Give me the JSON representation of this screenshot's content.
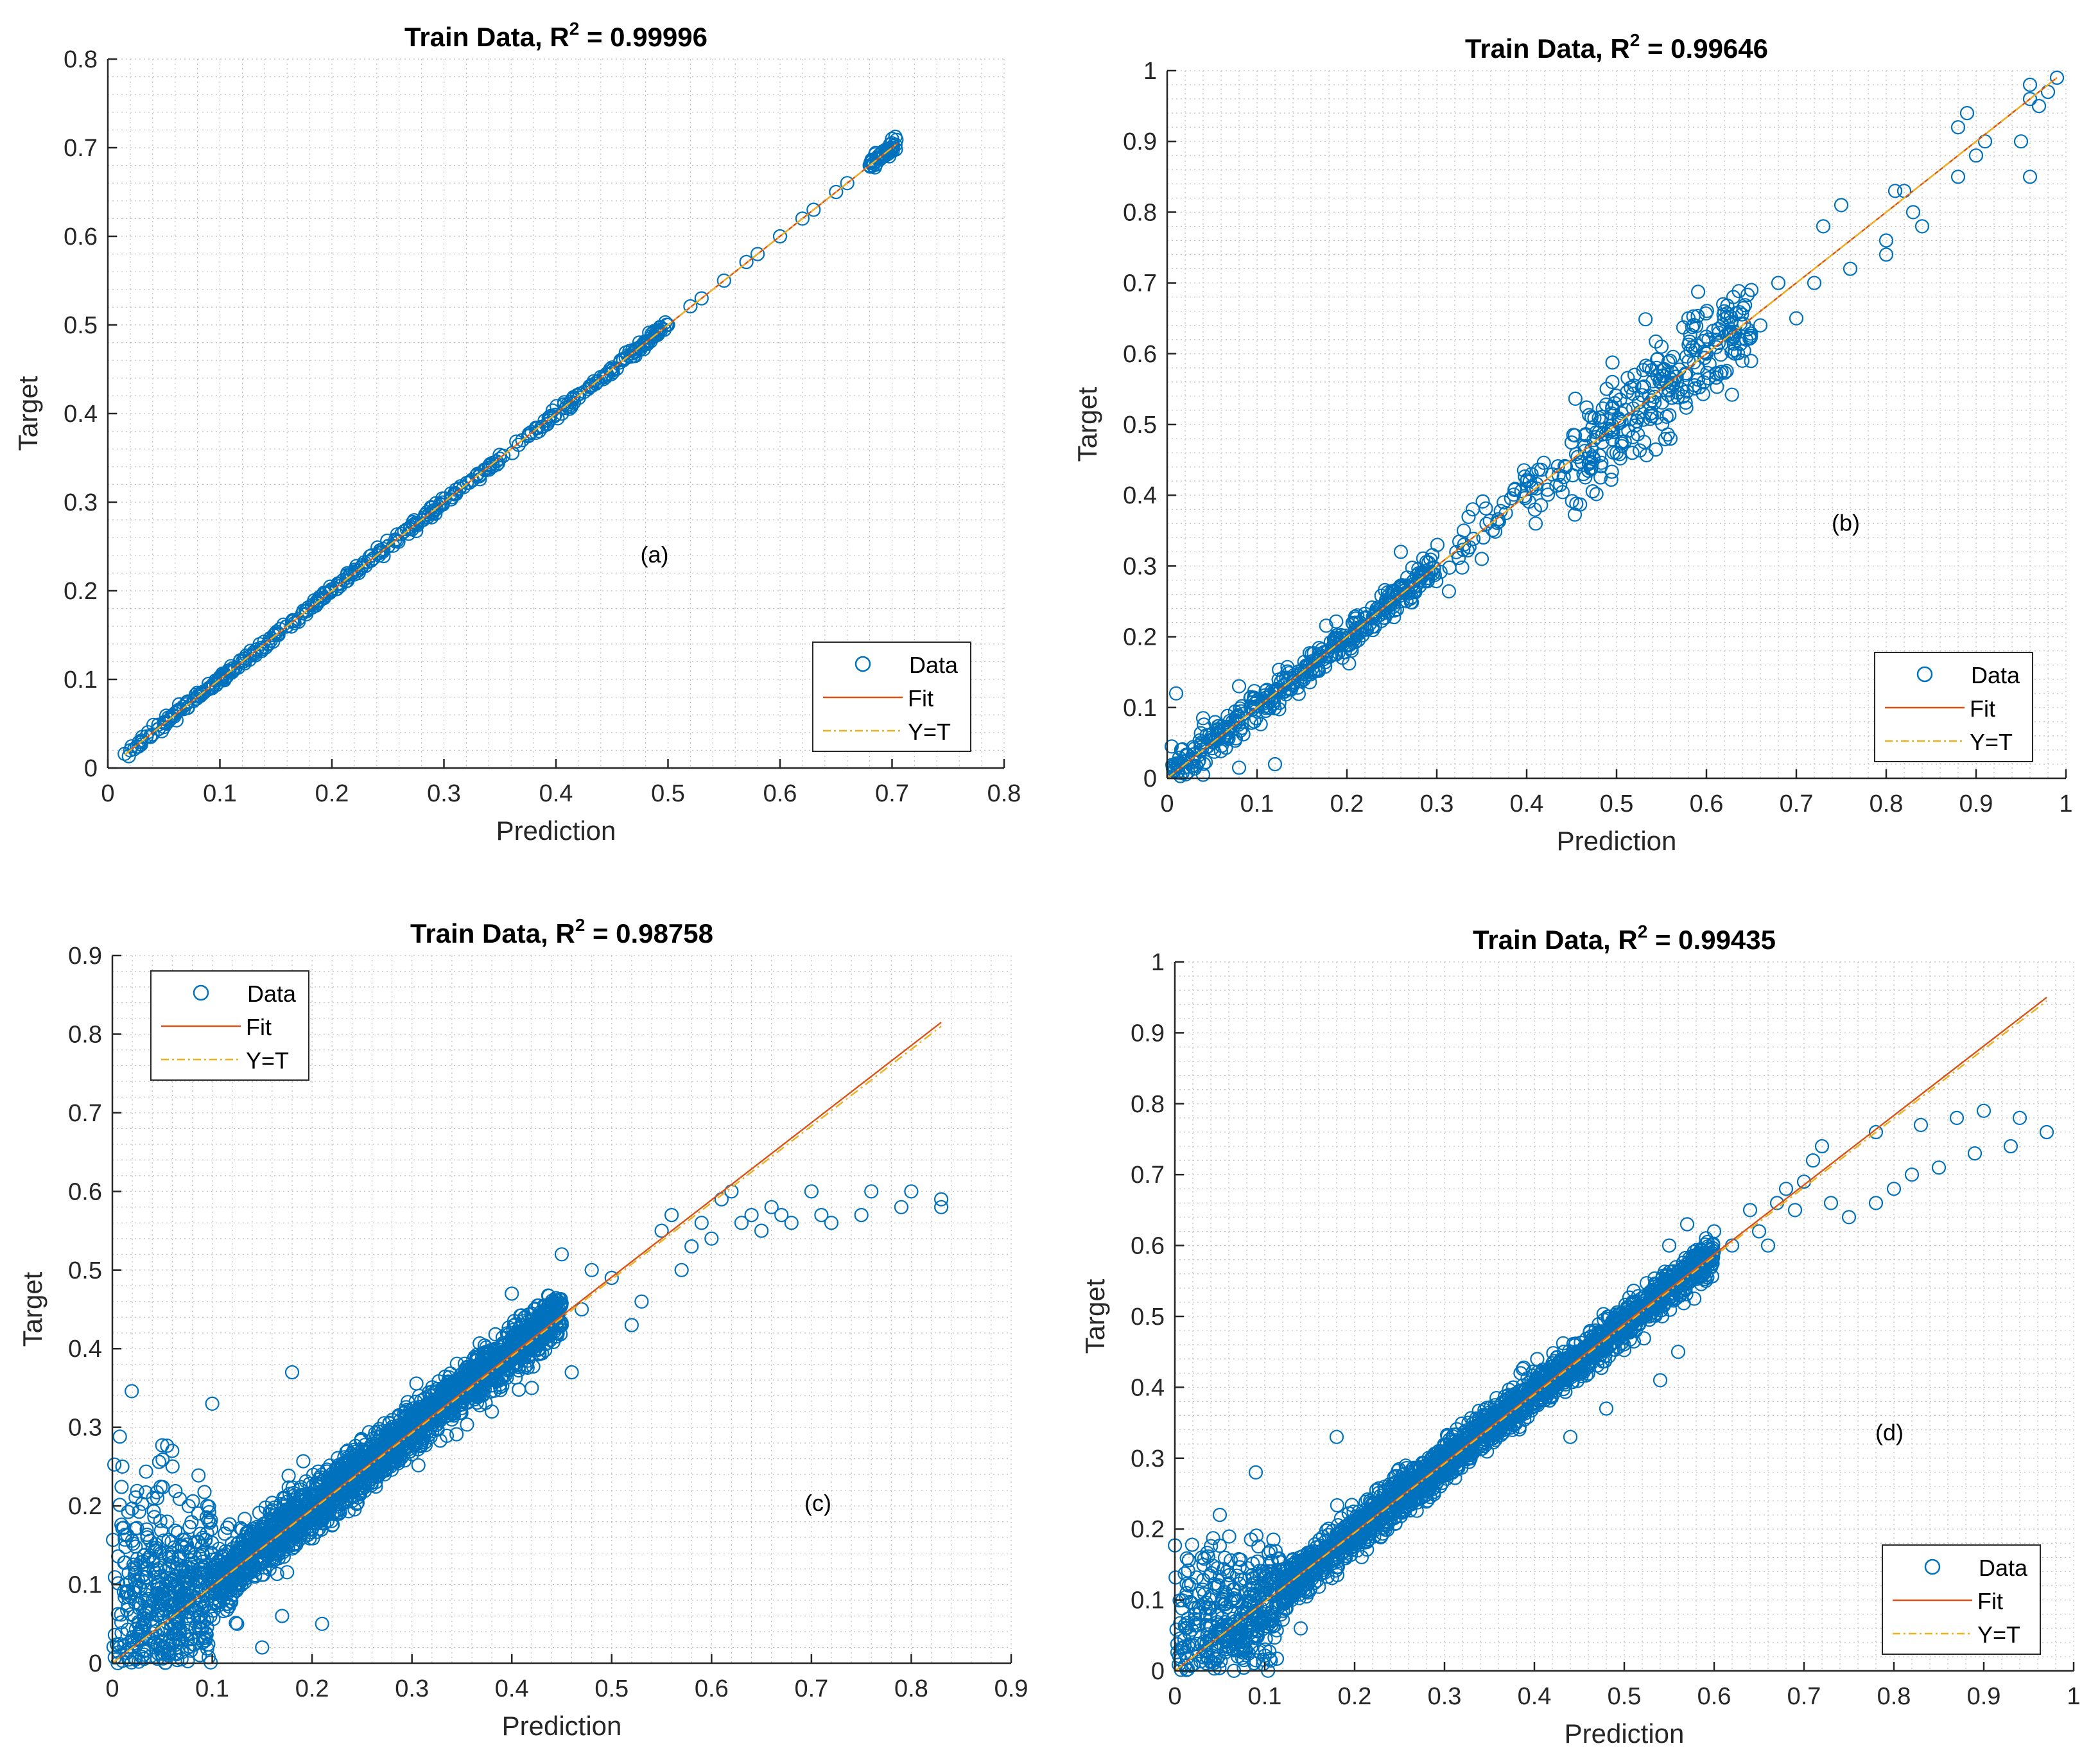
{
  "chart_data": [
    {
      "type": "scatter",
      "title_prefix": "Train Data, R",
      "title_sup": "2",
      "title_suffix": " = 0.99996",
      "xlabel": "Prediction",
      "ylabel": "Target",
      "annotation": "(a)",
      "annotation_pos": [
        0.61,
        0.29
      ],
      "xlim": [
        0,
        0.8
      ],
      "ylim": [
        0,
        0.8
      ],
      "xticks": [
        0,
        0.1,
        0.2,
        0.3,
        0.4,
        0.5,
        0.6,
        0.7,
        0.8
      ],
      "yticks": [
        0,
        0.1,
        0.2,
        0.3,
        0.4,
        0.5,
        0.6,
        0.7,
        0.8
      ],
      "xtick_labels": [
        "0",
        "0.1",
        "0.2",
        "0.3",
        "0.4",
        "0.5",
        "0.6",
        "0.7",
        "0.8"
      ],
      "ytick_labels": [
        "0",
        "0.1",
        "0.2",
        "0.3",
        "0.4",
        "0.5",
        "0.6",
        "0.7",
        "0.8"
      ],
      "fit": {
        "x": [
          0.015,
          0.705
        ],
        "y": [
          0.015,
          0.705
        ]
      },
      "identity": {
        "x": [
          0.015,
          0.705
        ],
        "y": [
          0.015,
          0.705
        ]
      },
      "points": [
        [
          0.015,
          0.016
        ],
        [
          0.02,
          0.02
        ],
        [
          0.03,
          0.031
        ],
        [
          0.04,
          0.038
        ],
        [
          0.05,
          0.051
        ],
        [
          0.06,
          0.062
        ],
        [
          0.07,
          0.072
        ],
        [
          0.08,
          0.085
        ],
        [
          0.09,
          0.095
        ],
        [
          0.1,
          0.1
        ],
        [
          0.11,
          0.115
        ],
        [
          0.12,
          0.12
        ],
        [
          0.13,
          0.13
        ],
        [
          0.15,
          0.152
        ],
        [
          0.17,
          0.168
        ],
        [
          0.19,
          0.19
        ],
        [
          0.21,
          0.212
        ],
        [
          0.23,
          0.228
        ],
        [
          0.25,
          0.25
        ],
        [
          0.27,
          0.272
        ],
        [
          0.29,
          0.289
        ],
        [
          0.31,
          0.31
        ],
        [
          0.33,
          0.332
        ],
        [
          0.35,
          0.349
        ],
        [
          0.37,
          0.37
        ],
        [
          0.39,
          0.392
        ],
        [
          0.41,
          0.41
        ],
        [
          0.43,
          0.43
        ],
        [
          0.45,
          0.452
        ],
        [
          0.47,
          0.47
        ],
        [
          0.49,
          0.49
        ],
        [
          0.5,
          0.5
        ],
        [
          0.52,
          0.521
        ],
        [
          0.53,
          0.53
        ],
        [
          0.55,
          0.55
        ],
        [
          0.57,
          0.571
        ],
        [
          0.58,
          0.58
        ],
        [
          0.6,
          0.6
        ],
        [
          0.62,
          0.62
        ],
        [
          0.63,
          0.63
        ],
        [
          0.65,
          0.65
        ],
        [
          0.66,
          0.66
        ],
        [
          0.68,
          0.68
        ],
        [
          0.69,
          0.69
        ],
        [
          0.7,
          0.7
        ],
        [
          0.7,
          0.705
        ],
        [
          0.695,
          0.695
        ],
        [
          0.7,
          0.71
        ]
      ],
      "density": [
        {
          "x0": 0.015,
          "x1": 0.5,
          "n": 380,
          "spread": 0.003,
          "nscale": 0,
          "slope": 1.0,
          "offset": 0
        },
        {
          "x0": 0.68,
          "x1": 0.705,
          "n": 40,
          "spread": 0.004,
          "nscale": 0,
          "slope": 1.0,
          "offset": 0
        }
      ],
      "legend": {
        "position": "lower-right",
        "entries": [
          "Data",
          "Fit",
          "Y=T"
        ]
      }
    },
    {
      "type": "scatter",
      "title_prefix": "Train Data, R",
      "title_sup": "2",
      "title_suffix": " = 0.99646",
      "xlabel": "Prediction",
      "ylabel": "Target",
      "annotation": "(b)",
      "annotation_pos": [
        0.755,
        0.35
      ],
      "xlim": [
        0,
        1
      ],
      "ylim": [
        0,
        1
      ],
      "xticks": [
        0,
        0.1,
        0.2,
        0.3,
        0.4,
        0.5,
        0.6,
        0.7,
        0.8,
        0.9,
        1
      ],
      "yticks": [
        0,
        0.1,
        0.2,
        0.3,
        0.4,
        0.5,
        0.6,
        0.7,
        0.8,
        0.9,
        1
      ],
      "xtick_labels": [
        "0",
        "0.1",
        "0.2",
        "0.3",
        "0.4",
        "0.5",
        "0.6",
        "0.7",
        "0.8",
        "0.9",
        "1"
      ],
      "ytick_labels": [
        "0",
        "0.1",
        "0.2",
        "0.3",
        "0.4",
        "0.5",
        "0.6",
        "0.7",
        "0.8",
        "0.9",
        "1"
      ],
      "fit": {
        "x": [
          0.0,
          0.99
        ],
        "y": [
          0.0,
          0.99
        ]
      },
      "identity": {
        "x": [
          0.0,
          0.99
        ],
        "y": [
          0.0,
          0.99
        ]
      },
      "points": [
        [
          0.005,
          0.045
        ],
        [
          0.01,
          0.12
        ],
        [
          0.04,
          0.005
        ],
        [
          0.04,
          0.085
        ],
        [
          0.08,
          0.13
        ],
        [
          0.08,
          0.015
        ],
        [
          0.12,
          0.02
        ],
        [
          0.26,
          0.32
        ],
        [
          0.33,
          0.35
        ],
        [
          0.34,
          0.38
        ],
        [
          0.35,
          0.31
        ],
        [
          0.4,
          0.42
        ],
        [
          0.41,
          0.36
        ],
        [
          0.55,
          0.61
        ],
        [
          0.58,
          0.65
        ],
        [
          0.62,
          0.66
        ],
        [
          0.63,
          0.68
        ],
        [
          0.65,
          0.69
        ],
        [
          0.66,
          0.64
        ],
        [
          0.68,
          0.7
        ],
        [
          0.7,
          0.65
        ],
        [
          0.72,
          0.7
        ],
        [
          0.73,
          0.78
        ],
        [
          0.75,
          0.81
        ],
        [
          0.76,
          0.72
        ],
        [
          0.8,
          0.76
        ],
        [
          0.8,
          0.74
        ],
        [
          0.81,
          0.83
        ],
        [
          0.82,
          0.83
        ],
        [
          0.83,
          0.8
        ],
        [
          0.84,
          0.78
        ],
        [
          0.88,
          0.85
        ],
        [
          0.88,
          0.92
        ],
        [
          0.89,
          0.94
        ],
        [
          0.9,
          0.88
        ],
        [
          0.91,
          0.9
        ],
        [
          0.95,
          0.9
        ],
        [
          0.96,
          0.85
        ],
        [
          0.96,
          0.96
        ],
        [
          0.96,
          0.98
        ],
        [
          0.97,
          0.95
        ],
        [
          0.98,
          0.97
        ],
        [
          0.99,
          0.99
        ],
        [
          0.5,
          0.46
        ],
        [
          0.52,
          0.57
        ],
        [
          0.56,
          0.48
        ],
        [
          0.6,
          0.6
        ],
        [
          0.64,
          0.59
        ]
      ],
      "density": [
        {
          "x0": 0.005,
          "x1": 0.3,
          "n": 420,
          "spread": 0.012,
          "nscale": 0,
          "slope": 1.0,
          "offset": 0
        },
        {
          "x0": 0.3,
          "x1": 0.45,
          "n": 60,
          "spread": 0.018,
          "nscale": 0,
          "slope": 1.0,
          "offset": 0
        },
        {
          "x0": 0.45,
          "x1": 0.65,
          "n": 260,
          "spread": 0.035,
          "nscale": 0,
          "slope": 1.0,
          "offset": 0
        }
      ],
      "legend": {
        "position": "lower-right",
        "entries": [
          "Data",
          "Fit",
          "Y=T"
        ]
      }
    },
    {
      "type": "scatter",
      "title_prefix": "Train Data, R",
      "title_sup": "2",
      "title_suffix": " = 0.98758",
      "xlabel": "Prediction",
      "ylabel": "Target",
      "annotation": "(c)",
      "annotation_pos": [
        0.785,
        0.215
      ],
      "xlim": [
        0,
        0.9
      ],
      "ylim": [
        0,
        0.9
      ],
      "xticks": [
        0,
        0.1,
        0.2,
        0.3,
        0.4,
        0.5,
        0.6,
        0.7,
        0.8,
        0.9
      ],
      "yticks": [
        0,
        0.1,
        0.2,
        0.3,
        0.4,
        0.5,
        0.6,
        0.7,
        0.8,
        0.9
      ],
      "xtick_labels": [
        "0",
        "0.1",
        "0.2",
        "0.3",
        "0.4",
        "0.5",
        "0.6",
        "0.7",
        "0.8",
        "0.9"
      ],
      "ytick_labels": [
        "0",
        "0.1",
        "0.2",
        "0.3",
        "0.4",
        "0.5",
        "0.6",
        "0.7",
        "0.8",
        "0.9"
      ],
      "fit": {
        "x": [
          0.0,
          0.83
        ],
        "y": [
          0.0,
          0.815
        ]
      },
      "identity": {
        "x": [
          0.0,
          0.83
        ],
        "y": [
          0.0,
          0.81
        ]
      },
      "points": [
        [
          0.01,
          0.25
        ],
        [
          0.035,
          0.16
        ],
        [
          0.045,
          0.21
        ],
        [
          0.055,
          0.18
        ],
        [
          0.06,
          0.27
        ],
        [
          0.095,
          0.2
        ],
        [
          0.1,
          0.33
        ],
        [
          0.13,
          0.17
        ],
        [
          0.125,
          0.05
        ],
        [
          0.15,
          0.02
        ],
        [
          0.18,
          0.37
        ],
        [
          0.17,
          0.06
        ],
        [
          0.21,
          0.05
        ],
        [
          0.46,
          0.37
        ],
        [
          0.47,
          0.45
        ],
        [
          0.48,
          0.5
        ],
        [
          0.5,
          0.49
        ],
        [
          0.52,
          0.43
        ],
        [
          0.53,
          0.46
        ],
        [
          0.55,
          0.55
        ],
        [
          0.56,
          0.57
        ],
        [
          0.57,
          0.5
        ],
        [
          0.58,
          0.53
        ],
        [
          0.59,
          0.56
        ],
        [
          0.6,
          0.54
        ],
        [
          0.61,
          0.59
        ],
        [
          0.62,
          0.6
        ],
        [
          0.63,
          0.56
        ],
        [
          0.64,
          0.57
        ],
        [
          0.65,
          0.55
        ],
        [
          0.66,
          0.58
        ],
        [
          0.67,
          0.57
        ],
        [
          0.68,
          0.56
        ],
        [
          0.7,
          0.6
        ],
        [
          0.71,
          0.57
        ],
        [
          0.72,
          0.56
        ],
        [
          0.75,
          0.57
        ],
        [
          0.76,
          0.6
        ],
        [
          0.79,
          0.58
        ],
        [
          0.8,
          0.6
        ],
        [
          0.83,
          0.59
        ],
        [
          0.83,
          0.58
        ],
        [
          0.38,
          0.32
        ],
        [
          0.42,
          0.35
        ],
        [
          0.45,
          0.52
        ],
        [
          0.4,
          0.47
        ]
      ],
      "density": [
        {
          "x0": 0.0,
          "x1": 0.1,
          "n": 600,
          "spread": 0.01,
          "nscale": 0.35,
          "slope": 0.99,
          "offset": 0
        },
        {
          "x0": 0.1,
          "x1": 0.45,
          "n": 2200,
          "spread": 0.012,
          "nscale": 0.07,
          "slope": 0.99,
          "offset": 0
        }
      ],
      "legend": {
        "position": "top-left",
        "entries": [
          "Data",
          "Fit",
          "Y=T"
        ]
      }
    },
    {
      "type": "scatter",
      "title_prefix": "Train Data, R",
      "title_sup": "2",
      "title_suffix": " = 0.99435",
      "xlabel": "Prediction",
      "ylabel": "Target",
      "annotation": "(d)",
      "annotation_pos": [
        0.795,
        0.325
      ],
      "xlim": [
        0,
        1
      ],
      "ylim": [
        0,
        1
      ],
      "xticks": [
        0,
        0.1,
        0.2,
        0.3,
        0.4,
        0.5,
        0.6,
        0.7,
        0.8,
        0.9,
        1
      ],
      "yticks": [
        0,
        0.1,
        0.2,
        0.3,
        0.4,
        0.5,
        0.6,
        0.7,
        0.8,
        0.9,
        1
      ],
      "xtick_labels": [
        "0",
        "0.1",
        "0.2",
        "0.3",
        "0.4",
        "0.5",
        "0.6",
        "0.7",
        "0.8",
        "0.9",
        "1"
      ],
      "ytick_labels": [
        "0",
        "0.1",
        "0.2",
        "0.3",
        "0.4",
        "0.5",
        "0.6",
        "0.7",
        "0.8",
        "0.9",
        "1"
      ],
      "fit": {
        "x": [
          0.0,
          0.97
        ],
        "y": [
          0.0,
          0.95
        ]
      },
      "identity": {
        "x": [
          0.0,
          0.97
        ],
        "y": [
          0.0,
          0.945
        ]
      },
      "points": [
        [
          0.03,
          0.16
        ],
        [
          0.05,
          0.22
        ],
        [
          0.09,
          0.28
        ],
        [
          0.18,
          0.33
        ],
        [
          0.09,
          0.015
        ],
        [
          0.14,
          0.06
        ],
        [
          0.55,
          0.6
        ],
        [
          0.57,
          0.63
        ],
        [
          0.6,
          0.62
        ],
        [
          0.62,
          0.6
        ],
        [
          0.64,
          0.65
        ],
        [
          0.65,
          0.62
        ],
        [
          0.66,
          0.6
        ],
        [
          0.67,
          0.66
        ],
        [
          0.68,
          0.68
        ],
        [
          0.69,
          0.65
        ],
        [
          0.7,
          0.69
        ],
        [
          0.71,
          0.72
        ],
        [
          0.72,
          0.74
        ],
        [
          0.73,
          0.66
        ],
        [
          0.75,
          0.64
        ],
        [
          0.78,
          0.66
        ],
        [
          0.78,
          0.76
        ],
        [
          0.8,
          0.68
        ],
        [
          0.82,
          0.7
        ],
        [
          0.83,
          0.77
        ],
        [
          0.85,
          0.71
        ],
        [
          0.87,
          0.78
        ],
        [
          0.89,
          0.73
        ],
        [
          0.9,
          0.79
        ],
        [
          0.93,
          0.74
        ],
        [
          0.94,
          0.78
        ],
        [
          0.97,
          0.76
        ],
        [
          0.48,
          0.37
        ],
        [
          0.54,
          0.41
        ],
        [
          0.56,
          0.45
        ],
        [
          0.44,
          0.33
        ],
        [
          0.52,
          0.5
        ]
      ],
      "density": [
        {
          "x0": 0.0,
          "x1": 0.12,
          "n": 500,
          "spread": 0.008,
          "nscale": 0.25,
          "slope": 0.98,
          "offset": 0
        },
        {
          "x0": 0.12,
          "x1": 0.6,
          "n": 2200,
          "spread": 0.012,
          "nscale": 0.05,
          "slope": 0.98,
          "offset": 0
        }
      ],
      "legend": {
        "position": "lower-right",
        "entries": [
          "Data",
          "Fit",
          "Y=T"
        ]
      }
    }
  ],
  "colors": {
    "data": "#0072BD",
    "fit": "#D95319",
    "identity": "#EDB120",
    "grid": "#bfbfbf",
    "axis": "#262626"
  }
}
